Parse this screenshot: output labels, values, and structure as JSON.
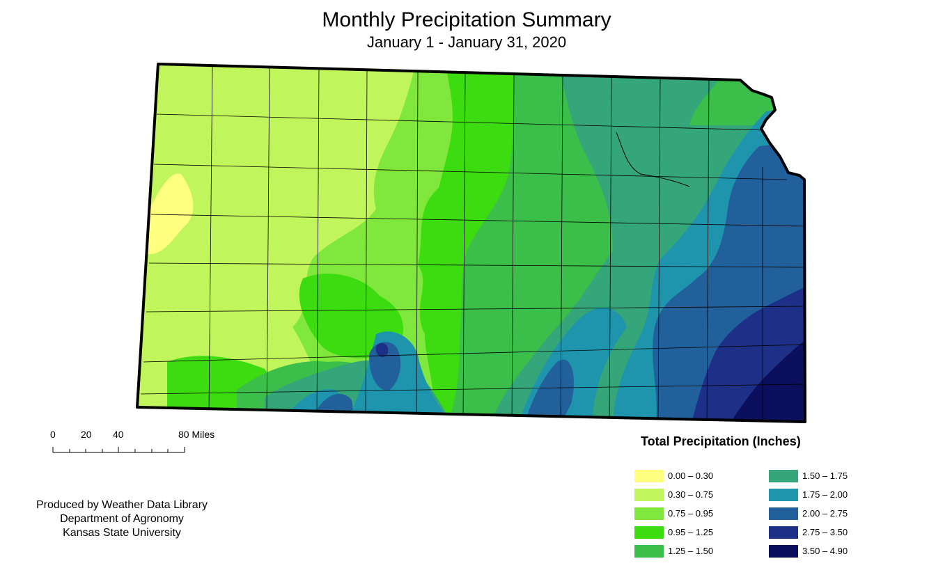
{
  "title": "Monthly Precipitation Summary",
  "subtitle": "January 1 - January 31, 2020",
  "scale_bar": {
    "labels": [
      "0",
      "20",
      "40",
      "80 Miles"
    ]
  },
  "credits": [
    "Produced by Weather Data Library",
    "Department of Agronomy",
    "Kansas State University"
  ],
  "legend": {
    "title": "Total Precipitation (Inches)",
    "items": [
      {
        "label": "0.00 – 0.30",
        "color": "#ffff80"
      },
      {
        "label": "0.30 – 0.75",
        "color": "#c0f55c"
      },
      {
        "label": "0.75 – 0.95",
        "color": "#80e83c"
      },
      {
        "label": "0.95 – 1.25",
        "color": "#3ddc10"
      },
      {
        "label": "1.25 – 1.50",
        "color": "#3cbf4a"
      },
      {
        "label": "1.50 – 1.75",
        "color": "#35a67a"
      },
      {
        "label": "1.75 – 2.00",
        "color": "#1f94ad"
      },
      {
        "label": "2.00 – 2.75",
        "color": "#22609b"
      },
      {
        "label": "2.75 – 3.50",
        "color": "#1d2f86"
      },
      {
        "label": "3.50 – 4.90",
        "color": "#0c0f5e"
      }
    ]
  }
}
